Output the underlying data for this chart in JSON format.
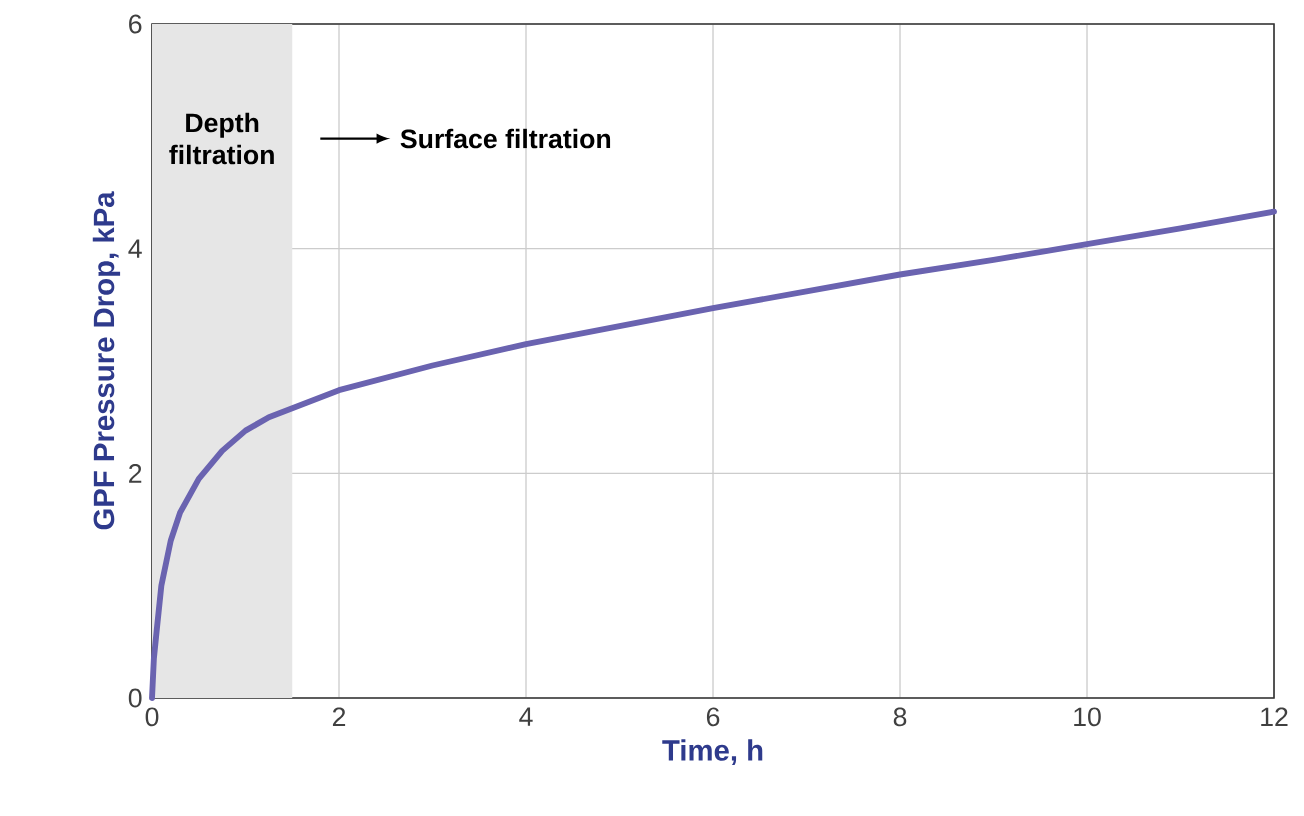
{
  "chart_data": {
    "type": "line",
    "xlabel": "Time, h",
    "ylabel": "GPF Pressure Drop, kPa",
    "x": [
      0,
      0.02,
      0.05,
      0.1,
      0.2,
      0.3,
      0.5,
      0.75,
      1.0,
      1.25,
      1.5,
      2,
      3,
      4,
      5,
      6,
      7,
      8,
      9,
      10,
      11,
      12
    ],
    "series": [
      {
        "color": "#6a63b0",
        "values": [
          0,
          0.35,
          0.6,
          1.0,
          1.4,
          1.65,
          1.95,
          2.2,
          2.38,
          2.5,
          2.58,
          2.74,
          2.96,
          3.15,
          3.31,
          3.47,
          3.62,
          3.77,
          3.9,
          4.04,
          4.18,
          4.33
        ]
      }
    ],
    "xlim": [
      0,
      12
    ],
    "ylim": [
      0,
      6
    ],
    "xticks": [
      0,
      2,
      4,
      6,
      8,
      10,
      12
    ],
    "yticks": [
      0,
      2,
      4,
      6
    ],
    "grid": true,
    "marker": "none",
    "line_style": "solid",
    "bands": [
      {
        "axis": "x",
        "from": 0,
        "to": 1.5,
        "label": "Depth filtration",
        "color": "#e6e6e6"
      }
    ],
    "annotations": [
      "Surface filtration"
    ]
  }
}
